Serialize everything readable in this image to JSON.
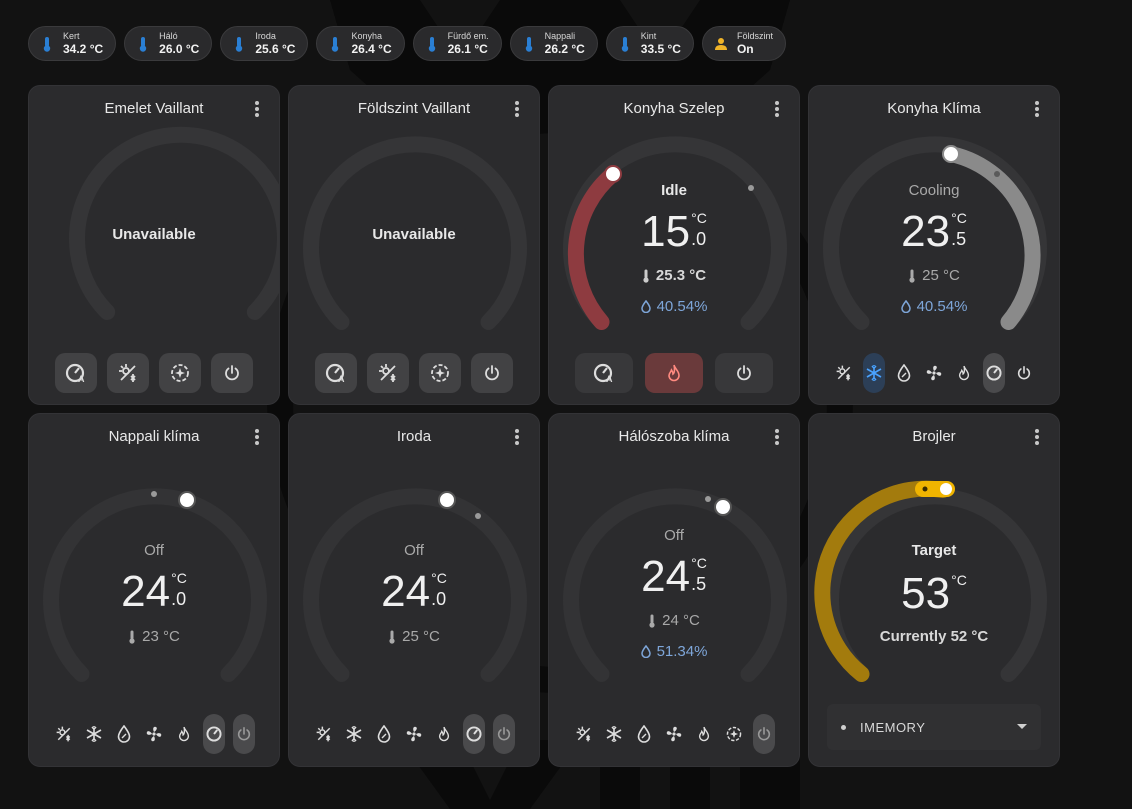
{
  "chips": [
    {
      "name": "Kert",
      "value": "34.2 °C",
      "icon": "thermometer-icon"
    },
    {
      "name": "Háló",
      "value": "26.0 °C",
      "icon": "thermometer-icon"
    },
    {
      "name": "Iroda",
      "value": "25.6 °C",
      "icon": "thermometer-icon"
    },
    {
      "name": "Konyha",
      "value": "26.4 °C",
      "icon": "thermometer-icon"
    },
    {
      "name": "Fürdő em.",
      "value": "26.1 °C",
      "icon": "thermometer-icon"
    },
    {
      "name": "Nappali",
      "value": "26.2 °C",
      "icon": "thermometer-icon"
    },
    {
      "name": "Kint",
      "value": "33.5 °C",
      "icon": "thermometer-icon"
    },
    {
      "name": "Földszint",
      "value": "On",
      "icon": "person-icon"
    }
  ],
  "cards": {
    "emelet": {
      "title": "Emelet Vaillant",
      "status": "Unavailable"
    },
    "foldszint": {
      "title": "Földszint Vaillant",
      "status": "Unavailable"
    },
    "konyha_szelep": {
      "title": "Konyha Szelep",
      "state": "Idle",
      "target_int": "15",
      "target_dec": ".0",
      "unit": "°C",
      "current": "25.3 °C",
      "humidity": "40.54%"
    },
    "konyha_klima": {
      "title": "Konyha Klíma",
      "state": "Cooling",
      "target_int": "23",
      "target_dec": ".5",
      "unit": "°C",
      "current": "25 °C",
      "humidity": "40.54%"
    },
    "nappali": {
      "title": "Nappali klíma",
      "state": "Off",
      "target_int": "24",
      "target_dec": ".0",
      "unit": "°C",
      "current": "23 °C"
    },
    "iroda": {
      "title": "Iroda",
      "state": "Off",
      "target_int": "24",
      "target_dec": ".0",
      "unit": "°C",
      "current": "25 °C"
    },
    "haloszoba": {
      "title": "Hálószoba klíma",
      "state": "Off",
      "target_int": "24",
      "target_dec": ".5",
      "unit": "°C",
      "current": "24 °C",
      "humidity": "51.34%"
    },
    "brojler": {
      "title": "Brojler",
      "state": "Target",
      "target_int": "53",
      "unit": "°C",
      "current": "Currently 52 °C",
      "mode": "IMEMORY"
    }
  },
  "colors": {
    "heat": "#8e3b40",
    "cool": "#8a8a8a",
    "boiler": "#a37b0d",
    "thermo_icon": "#2a7fd4",
    "humidity": "#7ea6d9"
  }
}
